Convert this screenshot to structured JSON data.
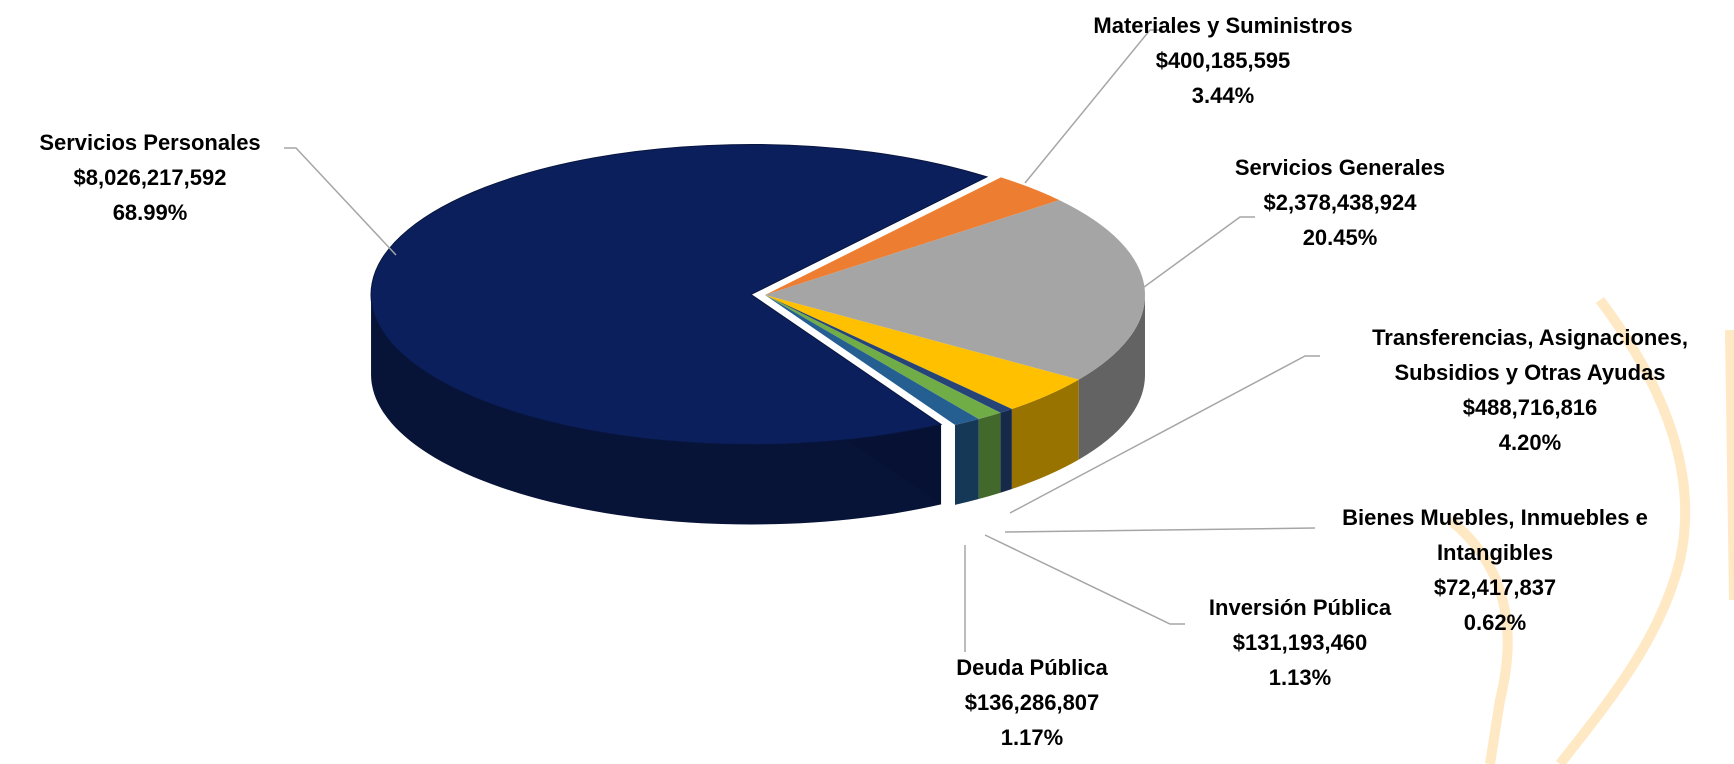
{
  "chart_data": {
    "type": "pie3d",
    "categories": [
      "Servicios Personales",
      "Materiales y Suministros",
      "Servicios Generales",
      "Transferencias, Asignaciones, Subsidios y Otras Ayudas",
      "Bienes Muebles, Inmuebles e Intangibles",
      "Inversión Pública",
      "Deuda Pública"
    ],
    "values": [
      8026217592,
      400185595,
      2378438924,
      488716816,
      72417837,
      131193460,
      136286807
    ],
    "value_labels": [
      "$8,026,217,592",
      "$400,185,595",
      "$2,378,438,924",
      "$488,716,816",
      "$72,417,837",
      "$131,193,460",
      "$136,286,807"
    ],
    "percents": [
      68.99,
      3.44,
      20.45,
      4.2,
      0.62,
      1.13,
      1.17
    ],
    "percent_labels": [
      "68.99%",
      "3.44%",
      "20.45%",
      "4.20%",
      "0.62%",
      "1.13%",
      "1.17%"
    ],
    "colors": [
      "#0b1f5c",
      "#ed7d31",
      "#a5a5a5",
      "#ffc000",
      "#264478",
      "#70ad47",
      "#255e91"
    ]
  }
}
